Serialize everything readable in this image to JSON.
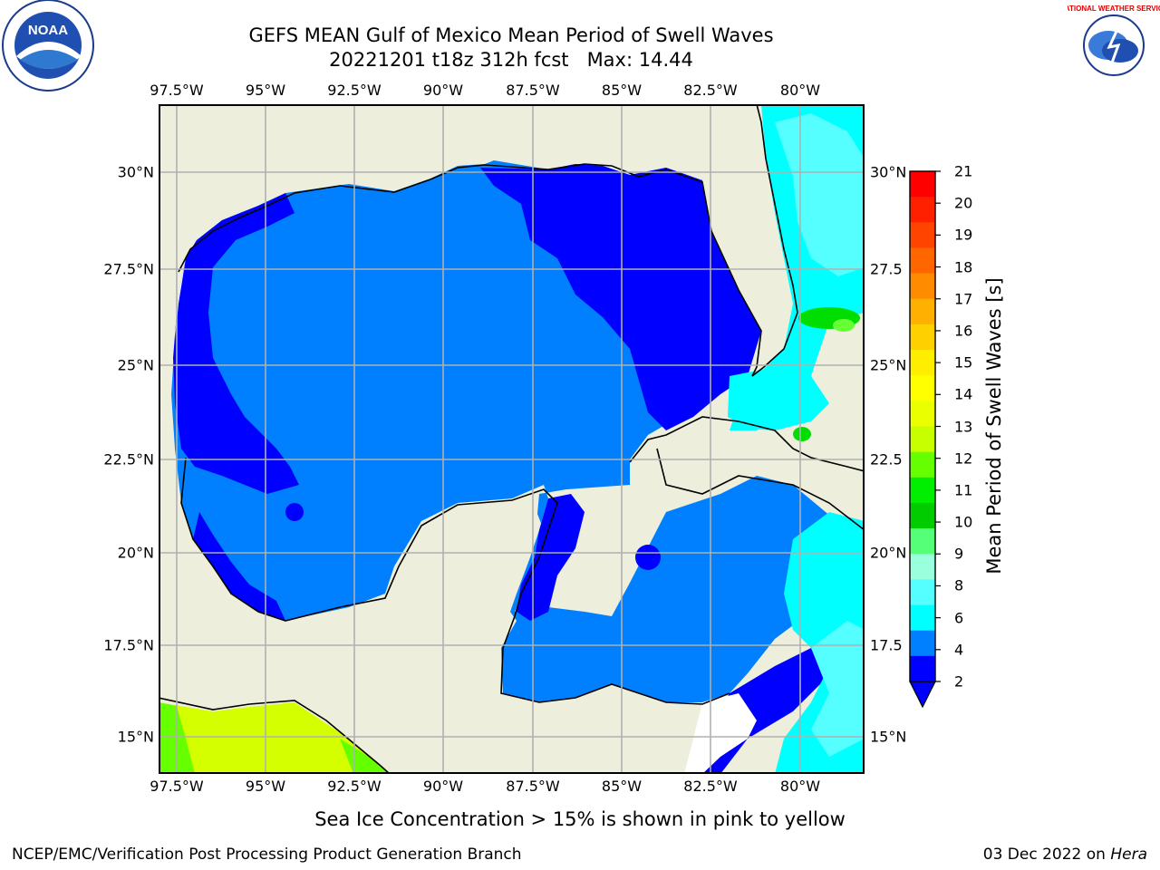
{
  "title": {
    "line1": "GEFS MEAN Gulf of Mexico Mean Period of Swell Waves",
    "line2": "20221201 t18z 312h fcst   Max: 14.44"
  },
  "map": {
    "lon_labels": [
      "97.5°W",
      "95°W",
      "92.5°W",
      "90°W",
      "87.5°W",
      "85°W",
      "82.5°W",
      "80°W"
    ],
    "lat_labels_left": [
      "30°N",
      "27.5°N",
      "25°N",
      "22.5°N",
      "20°N",
      "17.5°N",
      "15°N"
    ],
    "lat_labels_right": [
      "30°N",
      "27.5",
      "25°N",
      "22.5",
      "20°N",
      "17.5",
      "15°N"
    ],
    "lon_range": [
      -98,
      -78.2
    ],
    "lat_range": [
      14,
      31.7
    ],
    "colors": {
      "land": "#eeeedd",
      "deep_blue": "#0000ff",
      "blue": "#0080ff",
      "cyan": "#00ffff",
      "light_cyan": "#55ffff",
      "green": "#00dd00",
      "yellow_green": "#d4ff00",
      "grid": "#b0b0b0"
    }
  },
  "colorbar": {
    "label": "Mean Period of Swell Waves [s]",
    "ticks": [
      "21",
      "20",
      "19",
      "18",
      "17",
      "16",
      "15",
      "14",
      "13",
      "12",
      "11",
      "10",
      "9",
      "8",
      "6",
      "4",
      "2"
    ],
    "colors": [
      "#ff0000",
      "#ff2000",
      "#ff4400",
      "#ff6600",
      "#ff8c00",
      "#ffb000",
      "#ffd000",
      "#ffee00",
      "#ffff00",
      "#eaff00",
      "#c8ff00",
      "#66ff00",
      "#00ee00",
      "#00cc00",
      "#55ff77",
      "#99ffdd",
      "#55ffff",
      "#00ffff",
      "#0080ff",
      "#0000ff"
    ]
  },
  "subcaption": "Sea Ice Concentration > 15% is shown in pink to yellow",
  "credit": "NCEP/EMC/Verification Post Processing Product Generation Branch",
  "datestamp": {
    "prefix": "03 Dec 2022 on ",
    "host": "Hera"
  },
  "logos": {
    "left": {
      "icon": "noaa-logo",
      "text": "NOAA"
    },
    "right": {
      "icon": "nws-logo",
      "text": "NATIONAL WEATHER SERVICE"
    }
  }
}
